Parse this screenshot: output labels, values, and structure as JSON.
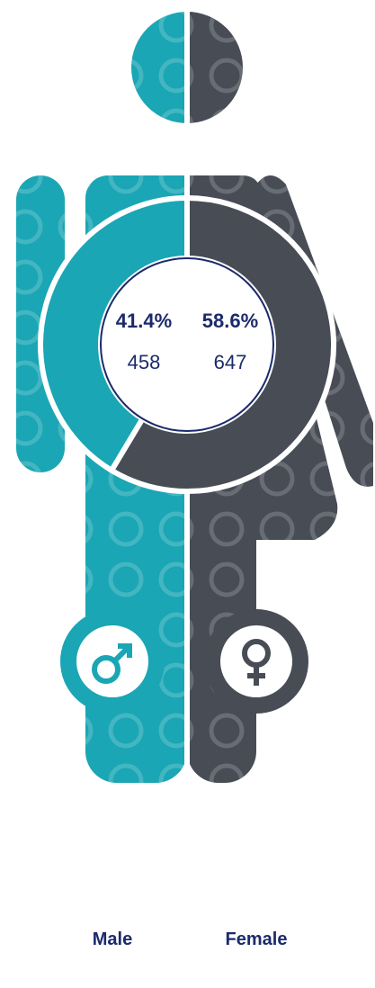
{
  "chart_data": {
    "type": "donut",
    "categories": [
      "Male",
      "Female"
    ],
    "values": [
      41.4,
      58.6
    ],
    "value_labels": [
      "41.4%",
      "58.6%"
    ],
    "counts": [
      458,
      647
    ],
    "colors": [
      "#1aa6b4",
      "#474c55"
    ]
  }
}
